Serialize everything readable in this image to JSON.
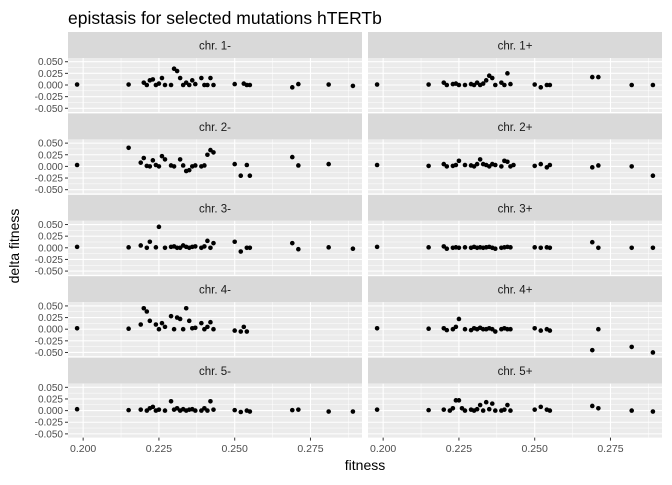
{
  "chart_data": {
    "type": "scatter",
    "title": "epistasis for selected mutations hTERTb",
    "xlabel": "fitness",
    "ylabel": "delta fitness",
    "xlim": [
      0.195,
      0.292
    ],
    "ylim": [
      -0.058,
      0.058
    ],
    "x_ticks": [
      0.2,
      0.225,
      0.25,
      0.275
    ],
    "x_tick_labels": [
      "0.200",
      "0.225",
      "0.250",
      "0.275"
    ],
    "y_ticks": [
      -0.05,
      -0.025,
      0.0,
      0.025,
      0.05
    ],
    "y_tick_labels": [
      "-0.050",
      "-0.025",
      "0.000",
      "0.025",
      "0.050"
    ],
    "grid": true,
    "panel_background": "#ebebeb",
    "strip_background": "#d9d9d9",
    "point_color": "#000000",
    "panels": [
      {
        "label": "chr. 1-",
        "points": [
          [
            0.198,
            0.001
          ],
          [
            0.215,
            0.001
          ],
          [
            0.22,
            0.005
          ],
          [
            0.221,
            0.0
          ],
          [
            0.222,
            0.01
          ],
          [
            0.223,
            0.012
          ],
          [
            0.224,
            0.0
          ],
          [
            0.225,
            0.003
          ],
          [
            0.226,
            0.015
          ],
          [
            0.227,
            0.0
          ],
          [
            0.229,
            0.0
          ],
          [
            0.23,
            0.035
          ],
          [
            0.231,
            0.03
          ],
          [
            0.232,
            0.015
          ],
          [
            0.233,
            0.0
          ],
          [
            0.234,
            0.005
          ],
          [
            0.235,
            0.0
          ],
          [
            0.236,
            0.01
          ],
          [
            0.237,
            0.002
          ],
          [
            0.239,
            0.015
          ],
          [
            0.24,
            0.0
          ],
          [
            0.241,
            0.0
          ],
          [
            0.242,
            0.015
          ],
          [
            0.243,
            0.0
          ],
          [
            0.25,
            0.002
          ],
          [
            0.253,
            0.003
          ],
          [
            0.254,
            0.0
          ],
          [
            0.255,
            0.0
          ],
          [
            0.269,
            -0.005
          ],
          [
            0.271,
            0.002
          ],
          [
            0.281,
            0.001
          ],
          [
            0.289,
            -0.002
          ]
        ]
      },
      {
        "label": "chr. 1+",
        "points": [
          [
            0.198,
            0.001
          ],
          [
            0.215,
            0.001
          ],
          [
            0.22,
            0.005
          ],
          [
            0.221,
            0.0
          ],
          [
            0.223,
            0.002
          ],
          [
            0.224,
            0.003
          ],
          [
            0.225,
            0.0
          ],
          [
            0.227,
            0.0
          ],
          [
            0.229,
            0.002
          ],
          [
            0.23,
            0.0
          ],
          [
            0.231,
            0.005
          ],
          [
            0.232,
            0.0
          ],
          [
            0.233,
            0.003
          ],
          [
            0.234,
            0.01
          ],
          [
            0.235,
            0.02
          ],
          [
            0.236,
            0.015
          ],
          [
            0.237,
            0.0
          ],
          [
            0.239,
            0.005
          ],
          [
            0.24,
            0.0
          ],
          [
            0.241,
            0.025
          ],
          [
            0.242,
            0.002
          ],
          [
            0.25,
            0.001
          ],
          [
            0.252,
            -0.005
          ],
          [
            0.254,
            0.0
          ],
          [
            0.255,
            0.0
          ],
          [
            0.269,
            0.017
          ],
          [
            0.271,
            0.017
          ],
          [
            0.282,
            0.0
          ],
          [
            0.289,
            0.0
          ]
        ]
      },
      {
        "label": "chr. 2-",
        "points": [
          [
            0.198,
            0.003
          ],
          [
            0.215,
            0.04
          ],
          [
            0.219,
            0.008
          ],
          [
            0.22,
            0.018
          ],
          [
            0.221,
            0.001
          ],
          [
            0.222,
            0.0
          ],
          [
            0.223,
            0.013
          ],
          [
            0.224,
            0.003
          ],
          [
            0.225,
            0.0
          ],
          [
            0.226,
            0.022
          ],
          [
            0.227,
            0.015
          ],
          [
            0.229,
            0.002
          ],
          [
            0.23,
            0.0
          ],
          [
            0.232,
            0.015
          ],
          [
            0.233,
            0.002
          ],
          [
            0.234,
            -0.01
          ],
          [
            0.235,
            -0.008
          ],
          [
            0.236,
            0.0
          ],
          [
            0.237,
            0.002
          ],
          [
            0.239,
            0.0
          ],
          [
            0.24,
            0.002
          ],
          [
            0.241,
            0.025
          ],
          [
            0.242,
            0.035
          ],
          [
            0.243,
            0.03
          ],
          [
            0.25,
            0.005
          ],
          [
            0.252,
            -0.02
          ],
          [
            0.254,
            0.003
          ],
          [
            0.255,
            -0.02
          ],
          [
            0.269,
            0.02
          ],
          [
            0.271,
            0.002
          ],
          [
            0.281,
            0.005
          ]
        ]
      },
      {
        "label": "chr. 2+",
        "points": [
          [
            0.198,
            0.003
          ],
          [
            0.215,
            0.001
          ],
          [
            0.22,
            0.005
          ],
          [
            0.221,
            0.0
          ],
          [
            0.223,
            0.001
          ],
          [
            0.224,
            0.003
          ],
          [
            0.225,
            0.012
          ],
          [
            0.227,
            0.003
          ],
          [
            0.229,
            0.002
          ],
          [
            0.23,
            0.0
          ],
          [
            0.231,
            0.005
          ],
          [
            0.232,
            0.015
          ],
          [
            0.233,
            0.005
          ],
          [
            0.234,
            0.003
          ],
          [
            0.235,
            0.0
          ],
          [
            0.236,
            0.005
          ],
          [
            0.237,
            0.003
          ],
          [
            0.239,
            0.0
          ],
          [
            0.24,
            0.012
          ],
          [
            0.241,
            0.01
          ],
          [
            0.242,
            0.0
          ],
          [
            0.243,
            0.003
          ],
          [
            0.25,
            0.001
          ],
          [
            0.252,
            0.005
          ],
          [
            0.254,
            -0.002
          ],
          [
            0.255,
            0.003
          ],
          [
            0.269,
            -0.002
          ],
          [
            0.271,
            0.002
          ],
          [
            0.282,
            0.0
          ],
          [
            0.289,
            -0.02
          ]
        ]
      },
      {
        "label": "chr. 3-",
        "points": [
          [
            0.198,
            0.002
          ],
          [
            0.215,
            0.001
          ],
          [
            0.219,
            0.005
          ],
          [
            0.221,
            0.0
          ],
          [
            0.222,
            0.013
          ],
          [
            0.224,
            0.001
          ],
          [
            0.225,
            0.045
          ],
          [
            0.227,
            0.0
          ],
          [
            0.229,
            0.002
          ],
          [
            0.23,
            0.003
          ],
          [
            0.231,
            0.0
          ],
          [
            0.232,
            0.0
          ],
          [
            0.233,
            0.005
          ],
          [
            0.234,
            0.002
          ],
          [
            0.235,
            0.0
          ],
          [
            0.236,
            0.002
          ],
          [
            0.237,
            0.003
          ],
          [
            0.239,
            0.0
          ],
          [
            0.24,
            0.003
          ],
          [
            0.241,
            0.015
          ],
          [
            0.242,
            0.0
          ],
          [
            0.243,
            0.01
          ],
          [
            0.25,
            0.013
          ],
          [
            0.252,
            -0.008
          ],
          [
            0.254,
            0.0
          ],
          [
            0.255,
            0.0
          ],
          [
            0.269,
            0.01
          ],
          [
            0.271,
            -0.003
          ],
          [
            0.281,
            0.001
          ],
          [
            0.289,
            -0.002
          ]
        ]
      },
      {
        "label": "chr. 3+",
        "points": [
          [
            0.198,
            0.002
          ],
          [
            0.215,
            0.001
          ],
          [
            0.22,
            0.003
          ],
          [
            0.221,
            -0.002
          ],
          [
            0.223,
            0.0
          ],
          [
            0.224,
            0.001
          ],
          [
            0.225,
            0.0
          ],
          [
            0.227,
            0.001
          ],
          [
            0.229,
            0.0
          ],
          [
            0.23,
            0.002
          ],
          [
            0.231,
            0.0
          ],
          [
            0.232,
            0.001
          ],
          [
            0.233,
            0.0
          ],
          [
            0.234,
            0.001
          ],
          [
            0.235,
            0.002
          ],
          [
            0.236,
            0.0
          ],
          [
            0.237,
            -0.002
          ],
          [
            0.239,
            0.0
          ],
          [
            0.24,
            0.001
          ],
          [
            0.241,
            0.002
          ],
          [
            0.242,
            0.001
          ],
          [
            0.25,
            0.001
          ],
          [
            0.252,
            0.0
          ],
          [
            0.254,
            0.001
          ],
          [
            0.255,
            0.0
          ],
          [
            0.269,
            0.012
          ],
          [
            0.271,
            0.0
          ],
          [
            0.282,
            0.0
          ],
          [
            0.289,
            0.0
          ]
        ]
      },
      {
        "label": "chr. 4-",
        "points": [
          [
            0.198,
            0.002
          ],
          [
            0.215,
            0.001
          ],
          [
            0.219,
            0.01
          ],
          [
            0.22,
            0.045
          ],
          [
            0.221,
            0.038
          ],
          [
            0.222,
            0.018
          ],
          [
            0.224,
            0.01
          ],
          [
            0.225,
            0.0
          ],
          [
            0.226,
            0.013
          ],
          [
            0.227,
            0.005
          ],
          [
            0.229,
            0.028
          ],
          [
            0.23,
            0.0
          ],
          [
            0.231,
            0.025
          ],
          [
            0.232,
            0.022
          ],
          [
            0.233,
            0.0
          ],
          [
            0.234,
            0.045
          ],
          [
            0.235,
            0.018
          ],
          [
            0.236,
            0.002
          ],
          [
            0.237,
            0.003
          ],
          [
            0.239,
            0.013
          ],
          [
            0.24,
            0.0
          ],
          [
            0.241,
            0.005
          ],
          [
            0.242,
            0.015
          ],
          [
            0.243,
            0.0
          ],
          [
            0.25,
            -0.003
          ],
          [
            0.252,
            -0.005
          ],
          [
            0.253,
            0.005
          ],
          [
            0.254,
            -0.005
          ]
        ]
      },
      {
        "label": "chr. 4+",
        "points": [
          [
            0.198,
            0.002
          ],
          [
            0.215,
            0.001
          ],
          [
            0.22,
            0.002
          ],
          [
            0.221,
            -0.002
          ],
          [
            0.223,
            0.0
          ],
          [
            0.224,
            0.005
          ],
          [
            0.225,
            0.022
          ],
          [
            0.227,
            0.0
          ],
          [
            0.229,
            -0.002
          ],
          [
            0.23,
            0.002
          ],
          [
            0.231,
            0.0
          ],
          [
            0.232,
            0.003
          ],
          [
            0.233,
            0.0
          ],
          [
            0.234,
            0.0
          ],
          [
            0.235,
            0.002
          ],
          [
            0.236,
            0.0
          ],
          [
            0.237,
            -0.005
          ],
          [
            0.239,
            0.0
          ],
          [
            0.24,
            0.002
          ],
          [
            0.241,
            0.0
          ],
          [
            0.242,
            0.0
          ],
          [
            0.25,
            0.002
          ],
          [
            0.252,
            -0.003
          ],
          [
            0.254,
            0.0
          ],
          [
            0.255,
            -0.003
          ],
          [
            0.269,
            -0.045
          ],
          [
            0.271,
            0.0
          ],
          [
            0.282,
            -0.038
          ],
          [
            0.289,
            -0.05
          ]
        ]
      },
      {
        "label": "chr. 5-",
        "points": [
          [
            0.198,
            0.003
          ],
          [
            0.215,
            0.001
          ],
          [
            0.219,
            0.002
          ],
          [
            0.221,
            0.0
          ],
          [
            0.222,
            0.005
          ],
          [
            0.223,
            0.008
          ],
          [
            0.224,
            0.0
          ],
          [
            0.225,
            0.002
          ],
          [
            0.227,
            0.0
          ],
          [
            0.229,
            0.02
          ],
          [
            0.23,
            0.002
          ],
          [
            0.231,
            0.005
          ],
          [
            0.232,
            0.0
          ],
          [
            0.233,
            0.003
          ],
          [
            0.234,
            0.0
          ],
          [
            0.235,
            0.002
          ],
          [
            0.236,
            0.003
          ],
          [
            0.237,
            0.0
          ],
          [
            0.239,
            0.0
          ],
          [
            0.24,
            0.005
          ],
          [
            0.241,
            0.0
          ],
          [
            0.242,
            0.02
          ],
          [
            0.243,
            0.002
          ],
          [
            0.25,
            0.001
          ],
          [
            0.252,
            -0.003
          ],
          [
            0.254,
            0.0
          ],
          [
            0.255,
            -0.002
          ],
          [
            0.269,
            0.001
          ],
          [
            0.271,
            0.002
          ],
          [
            0.281,
            -0.002
          ],
          [
            0.289,
            -0.002
          ]
        ]
      },
      {
        "label": "chr. 5+",
        "points": [
          [
            0.198,
            0.002
          ],
          [
            0.215,
            0.001
          ],
          [
            0.22,
            0.002
          ],
          [
            0.222,
            0.0
          ],
          [
            0.223,
            0.005
          ],
          [
            0.224,
            0.022
          ],
          [
            0.225,
            0.022
          ],
          [
            0.226,
            0.005
          ],
          [
            0.227,
            0.0
          ],
          [
            0.229,
            0.002
          ],
          [
            0.23,
            0.0
          ],
          [
            0.231,
            0.003
          ],
          [
            0.232,
            0.012
          ],
          [
            0.233,
            0.0
          ],
          [
            0.234,
            0.018
          ],
          [
            0.235,
            0.003
          ],
          [
            0.236,
            0.015
          ],
          [
            0.237,
            0.0
          ],
          [
            0.239,
            0.0
          ],
          [
            0.24,
            0.002
          ],
          [
            0.241,
            0.012
          ],
          [
            0.242,
            0.0
          ],
          [
            0.25,
            0.002
          ],
          [
            0.252,
            0.008
          ],
          [
            0.254,
            0.002
          ],
          [
            0.255,
            0.0
          ],
          [
            0.269,
            0.01
          ],
          [
            0.271,
            0.005
          ],
          [
            0.282,
            0.0
          ],
          [
            0.289,
            -0.002
          ]
        ]
      }
    ]
  }
}
